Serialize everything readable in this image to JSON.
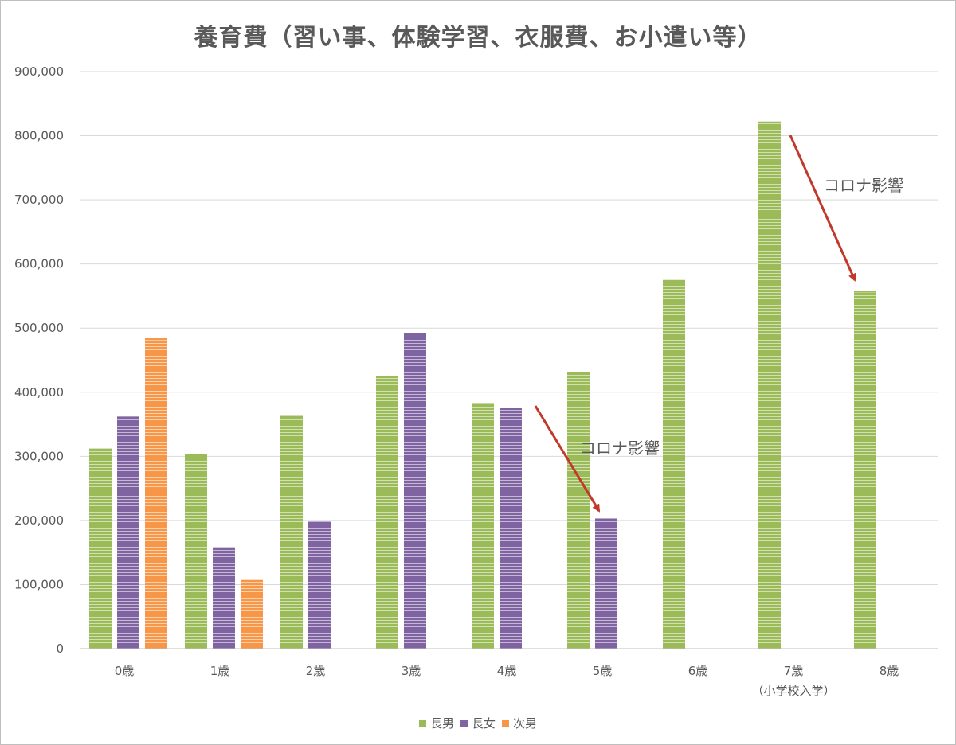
{
  "chart_data": {
    "type": "bar",
    "title": "養育費（習い事、体験学習、衣服費、お小遣い等）",
    "categories": [
      "0歳",
      "1歳",
      "2歳",
      "3歳",
      "4歳",
      "5歳",
      "6歳",
      "7歳",
      "8歳"
    ],
    "category_sublabels": [
      "",
      "",
      "",
      "",
      "",
      "",
      "",
      "（小学校入学）",
      ""
    ],
    "series": [
      {
        "name": "長男",
        "color": "#9bbb59",
        "values": [
          312000,
          304000,
          363000,
          425000,
          383000,
          432000,
          575000,
          822000,
          558000
        ]
      },
      {
        "name": "長女",
        "color": "#8064a2",
        "values": [
          362000,
          158000,
          198000,
          492000,
          375000,
          203000,
          null,
          null,
          null
        ]
      },
      {
        "name": "次男",
        "color": "#f79646",
        "values": [
          484000,
          107000,
          null,
          null,
          null,
          null,
          null,
          null,
          null
        ]
      }
    ],
    "yticks": [
      "0",
      "100,000",
      "200,000",
      "300,000",
      "400,000",
      "500,000",
      "600,000",
      "700,000",
      "800,000",
      "900,000"
    ],
    "ylim": [
      0,
      900000
    ],
    "grid": true,
    "legend_position": "bottom",
    "annotations": [
      {
        "text": "コロナ影響",
        "from_category": "4歳",
        "to_category": "5歳"
      },
      {
        "text": "コロナ影響",
        "from_category": "7歳",
        "to_category": "8歳"
      }
    ]
  }
}
